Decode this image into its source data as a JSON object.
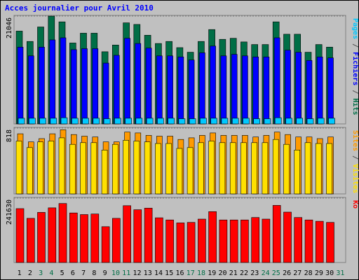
{
  "title": "Acces journalier pour Avril 2010",
  "colors": {
    "hits": "#006e46",
    "fichiers": "#0000ff",
    "pages": "#00c8ff",
    "visites": "#ff9a00",
    "sites": "#ffe000",
    "ko": "#ff0000",
    "weekday_label": "#000000",
    "weekend_label": "#006e46",
    "title": "#0000ff"
  },
  "chart_data": [
    {
      "type": "bar",
      "panel": "top",
      "y_tick_label": "21046",
      "side_labels": [
        {
          "text": "Pages",
          "color": "#00c8ff"
        },
        {
          "text": " / ",
          "color": "#505050"
        },
        {
          "text": "Fichiers",
          "color": "#0000ff"
        },
        {
          "text": " / ",
          "color": "#505050"
        },
        {
          "text": "Hits",
          "color": "#006e46"
        }
      ],
      "ylim": [
        0,
        21046
      ],
      "categories": [
        "1",
        "2",
        "3",
        "4",
        "5",
        "6",
        "7",
        "8",
        "9",
        "10",
        "11",
        "12",
        "13",
        "14",
        "15",
        "16",
        "17",
        "18",
        "19",
        "20",
        "21",
        "22",
        "23",
        "24",
        "25",
        "26",
        "27",
        "28",
        "29",
        "30",
        "31"
      ],
      "series": [
        {
          "name": "Hits",
          "values": [
            18000,
            16000,
            18800,
            20900,
            19800,
            15700,
            17600,
            17600,
            14000,
            15300,
            19600,
            19300,
            17200,
            15600,
            16000,
            14800,
            13900,
            16000,
            18300,
            16400,
            16600,
            15900,
            15400,
            15400,
            19800,
            17400,
            17400,
            13900,
            15400,
            14900,
            0
          ]
        },
        {
          "name": "Fichiers",
          "values": [
            14900,
            13200,
            14900,
            16300,
            16700,
            14400,
            14600,
            14600,
            11800,
            13300,
            16600,
            15600,
            14700,
            13200,
            13200,
            13000,
            12400,
            13800,
            15100,
            13200,
            13500,
            13200,
            13000,
            13000,
            16700,
            14300,
            13900,
            12300,
            13000,
            12800,
            0
          ]
        },
        {
          "name": "Pages",
          "values": [
            1100,
            1100,
            1100,
            1100,
            1200,
            1100,
            1100,
            1100,
            1000,
            1100,
            1100,
            1100,
            1100,
            1100,
            1100,
            1000,
            1000,
            1100,
            1100,
            1100,
            1100,
            1100,
            1000,
            1000,
            1200,
            1100,
            1100,
            1000,
            1100,
            1100,
            0
          ]
        }
      ]
    },
    {
      "type": "bar",
      "panel": "middle",
      "y_tick_label": "818",
      "side_labels": [
        {
          "text": "Sites",
          "color": "#ff9a00"
        },
        {
          "text": " / ",
          "color": "#505050"
        },
        {
          "text": "Visites",
          "color": "#ffe000"
        }
      ],
      "ylim": [
        0,
        818
      ],
      "categories": [
        "1",
        "2",
        "3",
        "4",
        "5",
        "6",
        "7",
        "8",
        "9",
        "10",
        "11",
        "12",
        "13",
        "14",
        "15",
        "16",
        "17",
        "18",
        "19",
        "20",
        "21",
        "22",
        "23",
        "24",
        "25",
        "26",
        "27",
        "28",
        "29",
        "30",
        "31"
      ],
      "series": [
        {
          "name": "Visites",
          "values": [
            650,
            570,
            640,
            650,
            690,
            610,
            630,
            630,
            540,
            610,
            660,
            650,
            640,
            620,
            620,
            560,
            570,
            630,
            650,
            630,
            630,
            630,
            630,
            630,
            670,
            610,
            540,
            630,
            620,
            620,
            0
          ]
        },
        {
          "name": "Sites",
          "values": [
            740,
            640,
            680,
            740,
            790,
            730,
            710,
            700,
            640,
            640,
            760,
            750,
            720,
            710,
            710,
            670,
            690,
            720,
            750,
            720,
            720,
            720,
            700,
            720,
            760,
            730,
            700,
            700,
            680,
            700,
            0
          ]
        }
      ]
    },
    {
      "type": "bar",
      "panel": "bottom",
      "y_tick_label": "241630",
      "side_labels": [
        {
          "text": "Ko",
          "color": "#ff0000"
        }
      ],
      "ylim": [
        0,
        241630
      ],
      "categories": [
        "1",
        "2",
        "3",
        "4",
        "5",
        "6",
        "7",
        "8",
        "9",
        "10",
        "11",
        "12",
        "13",
        "14",
        "15",
        "16",
        "17",
        "18",
        "19",
        "20",
        "21",
        "22",
        "23",
        "24",
        "25",
        "26",
        "27",
        "28",
        "29",
        "30",
        "31"
      ],
      "series": [
        {
          "name": "Ko",
          "values": [
            200000,
            164000,
            186000,
            203000,
            219000,
            184000,
            178000,
            180000,
            133000,
            164000,
            211000,
            196000,
            202000,
            166000,
            158000,
            147000,
            149000,
            161000,
            189000,
            158000,
            158000,
            158000,
            167000,
            161000,
            212000,
            187000,
            167000,
            158000,
            153000,
            149000,
            0
          ]
        }
      ]
    }
  ]
}
